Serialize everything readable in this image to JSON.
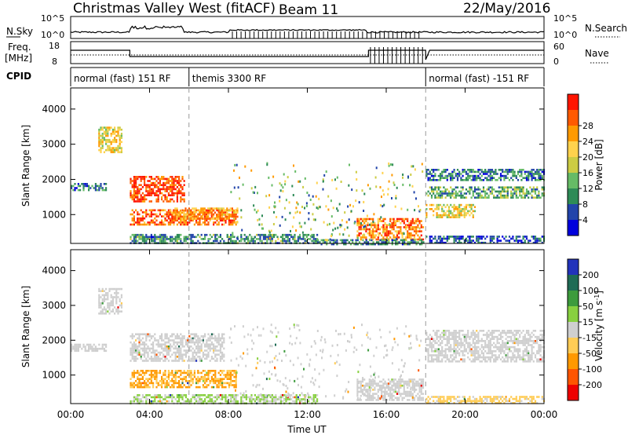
{
  "header": {
    "title": "Christmas Valley West (fitACF)",
    "beam": "Beam 11",
    "date": "22/May/2016"
  },
  "top_panels": {
    "nsky_label": "N.Sky",
    "nsearch_label": "N.Search",
    "freq_label_1": "Freq.",
    "freq_label_2": "[MHz]",
    "nave_label": "Nave",
    "cpid_label": "CPID",
    "sky_ticks": [
      "10^5",
      "10^0"
    ],
    "sky_ticks_right": [
      "10^5",
      "10^0"
    ],
    "freq_ticks": [
      "18",
      "8"
    ],
    "nave_ticks": [
      "60",
      "0"
    ]
  },
  "cpid_segments": [
    {
      "label": "normal (fast) 151 RF",
      "start_hour": 0,
      "end_hour": 6
    },
    {
      "label": "themis 3300 RF",
      "start_hour": 6,
      "end_hour": 18
    },
    {
      "label": "normal (fast) -151 RF",
      "start_hour": 18,
      "end_hour": 24
    }
  ],
  "chart_data": [
    {
      "type": "heatmap",
      "panel": "power",
      "ylabel": "Slant Range [km]",
      "xlim_hours": [
        0,
        24
      ],
      "ylim": [
        180,
        4600
      ],
      "yticks": [
        "1000",
        "2000",
        "3000",
        "4000"
      ],
      "colorbar": {
        "label": "Power [dB]",
        "ticks": [
          "4",
          "8",
          "12",
          "16",
          "20",
          "24",
          "28"
        ],
        "colors": [
          "#0000dd",
          "#2244aa",
          "#2e8b57",
          "#66bb66",
          "#cccc44",
          "#ffd24d",
          "#ff9a00",
          "#ff5a00",
          "#ff1500"
        ]
      },
      "regions": [
        {
          "t": [
            1.4,
            2.6
          ],
          "r": [
            2750,
            3500
          ],
          "value": 18
        },
        {
          "t": [
            0.0,
            1.8
          ],
          "r": [
            1700,
            1900
          ],
          "value": 9
        },
        {
          "t": [
            3.0,
            5.8
          ],
          "r": [
            1400,
            2100
          ],
          "value": 27
        },
        {
          "t": [
            3.0,
            8.4
          ],
          "r": [
            700,
            1150
          ],
          "value": 25
        },
        {
          "t": [
            5.0,
            8.5
          ],
          "r": [
            900,
            1200
          ],
          "value": 22
        },
        {
          "t": [
            3.0,
            12.5
          ],
          "r": [
            180,
            450
          ],
          "value": 10
        },
        {
          "t": [
            14.5,
            17.9
          ],
          "r": [
            300,
            900
          ],
          "value": 24
        },
        {
          "t": [
            12.5,
            17.9
          ],
          "r": [
            180,
            300
          ],
          "value": 10
        },
        {
          "t": [
            18.0,
            24.0
          ],
          "r": [
            2000,
            2300
          ],
          "value": 9
        },
        {
          "t": [
            18.0,
            24.0
          ],
          "r": [
            1500,
            1800
          ],
          "value": 12
        },
        {
          "t": [
            18.0,
            20.5
          ],
          "r": [
            900,
            1300
          ],
          "value": 18
        },
        {
          "t": [
            18.0,
            24.0
          ],
          "r": [
            180,
            400
          ],
          "value": 7
        }
      ]
    },
    {
      "type": "heatmap",
      "panel": "velocity",
      "ylabel": "Slant Range [km]",
      "xlabel": "Time UT",
      "xlim_hours": [
        0,
        24
      ],
      "ylim": [
        180,
        4600
      ],
      "yticks": [
        "1000",
        "2000",
        "3000",
        "4000"
      ],
      "xticks": [
        "00:00",
        "04:00",
        "08:00",
        "12:00",
        "16:00",
        "20:00",
        "00:00"
      ],
      "colorbar": {
        "label": "Velocity [m s^-1]",
        "ticks": [
          "200",
          "100",
          "50",
          "15",
          "-15",
          "-50",
          "-100",
          "-200"
        ],
        "colors": [
          "#2233bb",
          "#1f6b55",
          "#3d9b3d",
          "#88d040",
          "#cfcfcf",
          "#ffcc55",
          "#ff9900",
          "#ff5500",
          "#ee0000"
        ]
      },
      "regions": [
        {
          "t": [
            1.4,
            2.6
          ],
          "r": [
            2750,
            3500
          ],
          "value": 0
        },
        {
          "t": [
            0.0,
            1.8
          ],
          "r": [
            1700,
            1900
          ],
          "value": 0
        },
        {
          "t": [
            3.0,
            7.8
          ],
          "r": [
            1400,
            2200
          ],
          "value": 0
        },
        {
          "t": [
            3.0,
            8.4
          ],
          "r": [
            650,
            1150
          ],
          "value": -80
        },
        {
          "t": [
            3.0,
            12.5
          ],
          "r": [
            180,
            450
          ],
          "value": 30
        },
        {
          "t": [
            14.5,
            17.9
          ],
          "r": [
            300,
            900
          ],
          "value": 0
        },
        {
          "t": [
            18.0,
            24.0
          ],
          "r": [
            1400,
            2300
          ],
          "value": 0
        },
        {
          "t": [
            18.0,
            24.0
          ],
          "r": [
            180,
            400
          ],
          "value": -40
        }
      ]
    }
  ]
}
